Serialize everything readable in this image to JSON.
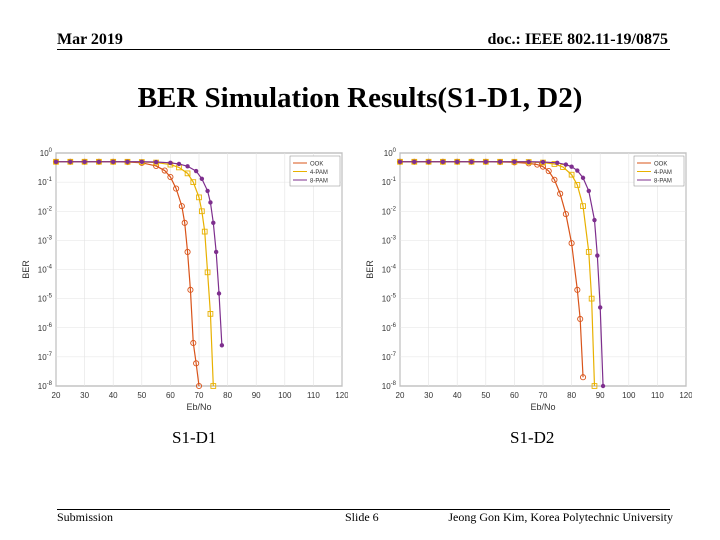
{
  "header": {
    "left": "Mar 2019",
    "right": "doc.: IEEE 802.11-19/0875"
  },
  "title": "BER Simulation Results(S1-D1, D2)",
  "captions": [
    "S1-D1",
    "S1-D2"
  ],
  "footer": {
    "left": "Submission",
    "center": "Slide 6",
    "right": "Jeong Gon Kim, Korea Polytechnic University"
  },
  "colors": {
    "ook": "#d9541a",
    "pam4": "#e8b100",
    "pam8": "#7e2f8e"
  },
  "chart_data": [
    {
      "type": "line",
      "xlabel": "Eb/No",
      "ylabel": "BER",
      "xlim": [
        20,
        120
      ],
      "ylim": [
        1e-08,
        1
      ],
      "yscale": "log",
      "xticks": [
        20,
        30,
        40,
        50,
        60,
        70,
        80,
        90,
        100,
        110,
        120
      ],
      "grid": true,
      "legend_position": "top-right",
      "series": [
        {
          "name": "OOK",
          "x": [
            20,
            25,
            30,
            35,
            40,
            45,
            50,
            55,
            58,
            60,
            62,
            64,
            65,
            66,
            67,
            68,
            69,
            70
          ],
          "y": [
            0.5,
            0.5,
            0.5,
            0.5,
            0.5,
            0.49,
            0.46,
            0.36,
            0.25,
            0.15,
            0.06,
            0.015,
            0.004,
            0.0004,
            2e-05,
            3e-07,
            6e-08,
            8e-09
          ]
        },
        {
          "name": "4-PAM",
          "x": [
            20,
            25,
            30,
            35,
            40,
            45,
            50,
            55,
            60,
            63,
            66,
            68,
            70,
            71,
            72,
            73,
            74,
            75
          ],
          "y": [
            0.5,
            0.5,
            0.5,
            0.5,
            0.5,
            0.5,
            0.49,
            0.47,
            0.4,
            0.32,
            0.2,
            0.1,
            0.03,
            0.01,
            0.002,
            8e-05,
            3e-06,
            8e-09
          ]
        },
        {
          "name": "8-PAM",
          "x": [
            20,
            25,
            30,
            35,
            40,
            45,
            50,
            55,
            60,
            63,
            66,
            69,
            71,
            73,
            74,
            75,
            76,
            77,
            78
          ],
          "y": [
            0.5,
            0.5,
            0.5,
            0.5,
            0.5,
            0.5,
            0.5,
            0.49,
            0.46,
            0.42,
            0.35,
            0.24,
            0.13,
            0.05,
            0.02,
            0.004,
            0.0004,
            1.5e-05,
            2.5e-07
          ]
        }
      ]
    },
    {
      "type": "line",
      "xlabel": "Eb/No",
      "ylabel": "BER",
      "xlim": [
        20,
        120
      ],
      "ylim": [
        1e-08,
        1
      ],
      "yscale": "log",
      "xticks": [
        20,
        30,
        40,
        50,
        60,
        70,
        80,
        90,
        100,
        110,
        120
      ],
      "grid": true,
      "legend_position": "top-right",
      "series": [
        {
          "name": "OOK",
          "x": [
            20,
            25,
            30,
            35,
            40,
            45,
            50,
            55,
            60,
            65,
            68,
            70,
            72,
            74,
            76,
            78,
            80,
            82,
            83,
            84
          ],
          "y": [
            0.5,
            0.5,
            0.5,
            0.5,
            0.5,
            0.5,
            0.5,
            0.49,
            0.48,
            0.44,
            0.4,
            0.34,
            0.24,
            0.12,
            0.04,
            0.008,
            0.0008,
            2e-05,
            2e-06,
            2e-08
          ]
        },
        {
          "name": "4-PAM",
          "x": [
            20,
            25,
            30,
            35,
            40,
            45,
            50,
            55,
            60,
            65,
            70,
            74,
            77,
            80,
            82,
            84,
            86,
            87,
            88
          ],
          "y": [
            0.5,
            0.5,
            0.5,
            0.5,
            0.5,
            0.5,
            0.5,
            0.5,
            0.5,
            0.49,
            0.47,
            0.42,
            0.33,
            0.18,
            0.08,
            0.015,
            0.0004,
            1e-05,
            1e-08
          ]
        },
        {
          "name": "8-PAM",
          "x": [
            20,
            25,
            30,
            35,
            40,
            45,
            50,
            55,
            60,
            65,
            70,
            75,
            78,
            80,
            82,
            84,
            86,
            88,
            89,
            90,
            91
          ],
          "y": [
            0.5,
            0.5,
            0.5,
            0.5,
            0.5,
            0.5,
            0.5,
            0.5,
            0.5,
            0.5,
            0.49,
            0.46,
            0.4,
            0.34,
            0.25,
            0.14,
            0.05,
            0.005,
            0.0003,
            5e-06,
            1e-08
          ]
        }
      ]
    }
  ]
}
